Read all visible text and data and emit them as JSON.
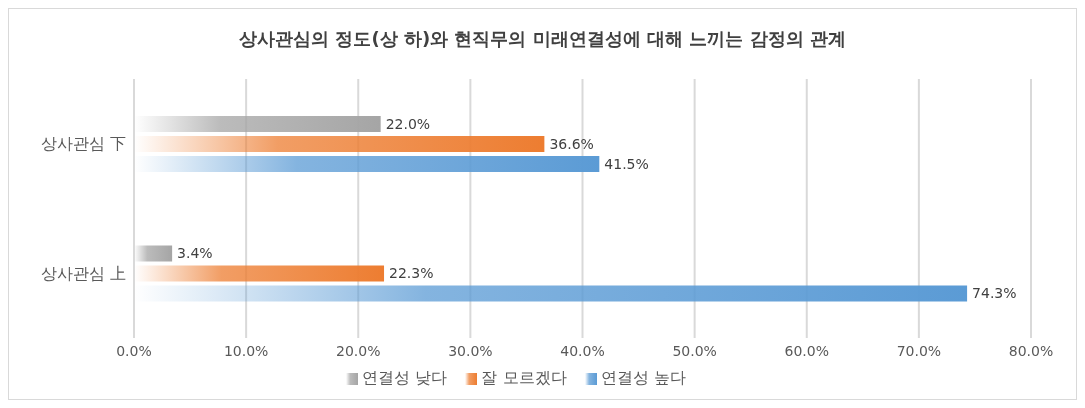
{
  "chart_data": {
    "type": "bar",
    "orientation": "horizontal",
    "title": "상사관심의 정도(상 하)와 현직무의 미래연결성에 대해 느끼는 감정의 관계",
    "categories": [
      "상사관심 下",
      "상사관심 上"
    ],
    "series": [
      {
        "name": "연결성 낮다",
        "color": "#a5a5a5",
        "values": [
          22.0,
          3.4
        ],
        "value_labels": [
          "22.0%",
          "3.4%"
        ]
      },
      {
        "name": "잘 모르겠다",
        "color": "#ed7d31",
        "values": [
          36.6,
          22.3
        ],
        "value_labels": [
          "36.6%",
          "22.3%"
        ]
      },
      {
        "name": "연결성 높다",
        "color": "#5b9bd5",
        "values": [
          41.5,
          74.3
        ],
        "value_labels": [
          "41.5%",
          "74.3%"
        ]
      }
    ],
    "xlim": [
      0,
      80
    ],
    "xticks": [
      {
        "value": 0,
        "label": "0.0%"
      },
      {
        "value": 10,
        "label": "10.0%"
      },
      {
        "value": 20,
        "label": "20.0%"
      },
      {
        "value": 30,
        "label": "30.0%"
      },
      {
        "value": 40,
        "label": "40.0%"
      },
      {
        "value": 50,
        "label": "50.0%"
      },
      {
        "value": 60,
        "label": "60.0%"
      },
      {
        "value": 70,
        "label": "70.0%"
      },
      {
        "value": 80,
        "label": "80.0%"
      }
    ],
    "grid": "x",
    "legend": "bottom"
  }
}
